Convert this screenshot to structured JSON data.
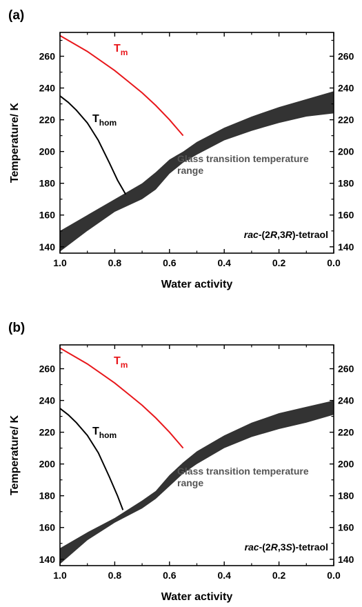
{
  "chart_data": [
    {
      "panel_label": "(a)",
      "type": "line",
      "xlabel": "Water activity",
      "ylabel": "Temperature/ K",
      "xlim": [
        1.0,
        0.0
      ],
      "ylim": [
        136,
        275
      ],
      "x_ticks": [
        "1.0",
        "0.8",
        "0.6",
        "0.4",
        "0.2",
        "0.0"
      ],
      "y_ticks": [
        "140",
        "160",
        "180",
        "200",
        "220",
        "240",
        "260"
      ],
      "mirror_y_axis_right": true,
      "sample_label": {
        "italic": "rac",
        "p1": "-(2",
        "r1": "R",
        "p2": ",3",
        "r2": "R",
        "p3": ")-tetraol"
      },
      "series": [
        {
          "key": "tm",
          "label_main": "T",
          "label_sub": "m",
          "color": "#e8171b",
          "x": [
            1.0,
            0.95,
            0.9,
            0.85,
            0.8,
            0.75,
            0.7,
            0.65,
            0.6,
            0.55
          ],
          "y": [
            273,
            268,
            263,
            257,
            251,
            244,
            237,
            229,
            220,
            210
          ]
        },
        {
          "key": "thom",
          "label_main": "T",
          "label_sub": "hom",
          "color": "#000000",
          "x": [
            1.0,
            0.97,
            0.94,
            0.9,
            0.86,
            0.82,
            0.79,
            0.76
          ],
          "y": [
            235,
            231,
            226,
            218,
            207,
            193,
            182,
            173
          ]
        }
      ],
      "band": {
        "label_line1": "Glass transition temperature",
        "label_line2": "range",
        "color": "#333333",
        "x": [
          1.0,
          0.9,
          0.8,
          0.7,
          0.65,
          0.6,
          0.55,
          0.5,
          0.4,
          0.3,
          0.2,
          0.1,
          0.0
        ],
        "lower": [
          137,
          150,
          162,
          170,
          176,
          186,
          193,
          198,
          207,
          213,
          218,
          222,
          224
        ],
        "upper": [
          150,
          160,
          170,
          180,
          187,
          195,
          200,
          206,
          215,
          222,
          228,
          233,
          238
        ]
      }
    },
    {
      "panel_label": "(b)",
      "type": "line",
      "xlabel": "Water activity",
      "ylabel": "Temperature/ K",
      "xlim": [
        1.0,
        0.0
      ],
      "ylim": [
        136,
        275
      ],
      "x_ticks": [
        "1.0",
        "0.8",
        "0.6",
        "0.4",
        "0.2",
        "0.0"
      ],
      "y_ticks": [
        "140",
        "160",
        "180",
        "200",
        "220",
        "240",
        "260"
      ],
      "mirror_y_axis_right": true,
      "sample_label": {
        "italic": "rac",
        "p1": "-(2",
        "r1": "R",
        "p2": ",3",
        "r2": "S",
        "p3": ")-tetraol"
      },
      "series": [
        {
          "key": "tm",
          "label_main": "T",
          "label_sub": "m",
          "color": "#e8171b",
          "x": [
            1.0,
            0.95,
            0.9,
            0.85,
            0.8,
            0.75,
            0.7,
            0.65,
            0.6,
            0.55
          ],
          "y": [
            273,
            268,
            263,
            257,
            251,
            244,
            237,
            229,
            220,
            210
          ]
        },
        {
          "key": "thom",
          "label_main": "T",
          "label_sub": "hom",
          "color": "#000000",
          "x": [
            1.0,
            0.97,
            0.94,
            0.9,
            0.86,
            0.82,
            0.79,
            0.77
          ],
          "y": [
            235,
            231,
            226,
            218,
            207,
            192,
            180,
            171
          ]
        }
      ],
      "band": {
        "label_line1": "Glass transition temperature",
        "label_line2": "range",
        "color": "#333333",
        "x": [
          1.0,
          0.9,
          0.8,
          0.7,
          0.65,
          0.6,
          0.55,
          0.5,
          0.4,
          0.3,
          0.2,
          0.1,
          0.0
        ],
        "lower": [
          137,
          152,
          163,
          172,
          178,
          186,
          194,
          200,
          210,
          217,
          222,
          226,
          231
        ],
        "upper": [
          147,
          157,
          166,
          177,
          183,
          193,
          201,
          208,
          218,
          226,
          232,
          236,
          240
        ]
      }
    }
  ]
}
